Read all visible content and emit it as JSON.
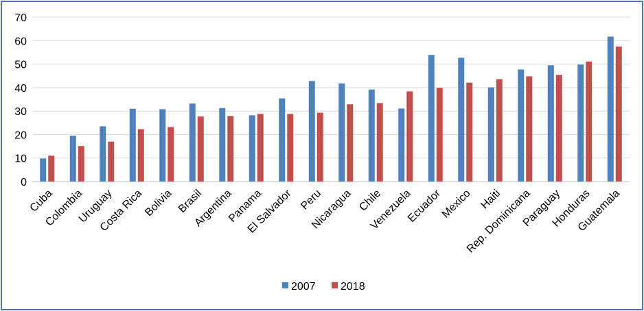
{
  "chart_data": {
    "type": "bar",
    "title": "",
    "xlabel": "",
    "ylabel": "",
    "ylim": [
      0,
      70
    ],
    "yticks": [
      "0",
      "10",
      "20",
      "30",
      "40",
      "50",
      "60",
      "70"
    ],
    "grid": true,
    "legend_position": "bottom",
    "categories": [
      "Cuba",
      "Colombia",
      "Uruguay",
      "Costa Rica",
      "Bolivia",
      "Brasil",
      "Argentina",
      "Panama",
      "El Salvador",
      "Peru",
      "Nicaragua",
      "Chile",
      "Venezuela",
      "Ecuador",
      "Mexico",
      "Haiti",
      "Rep. Dominicana",
      "Paraguay",
      "Honduras",
      "Guatemala"
    ],
    "series": [
      {
        "name": "2007",
        "color": "#4f81bd",
        "values": [
          9.8,
          19.5,
          23.5,
          31.0,
          30.8,
          33.2,
          31.3,
          28.2,
          35.4,
          42.8,
          41.8,
          39.2,
          31.1,
          53.9,
          52.7,
          40.1,
          47.7,
          49.5,
          49.8,
          61.7
        ]
      },
      {
        "name": "2018",
        "color": "#c0504d",
        "values": [
          11.0,
          15.1,
          17.0,
          22.3,
          23.2,
          27.7,
          27.9,
          28.8,
          28.8,
          29.3,
          32.9,
          33.4,
          38.4,
          39.9,
          42.1,
          43.6,
          44.8,
          45.4,
          51.1,
          57.5
        ]
      }
    ]
  }
}
